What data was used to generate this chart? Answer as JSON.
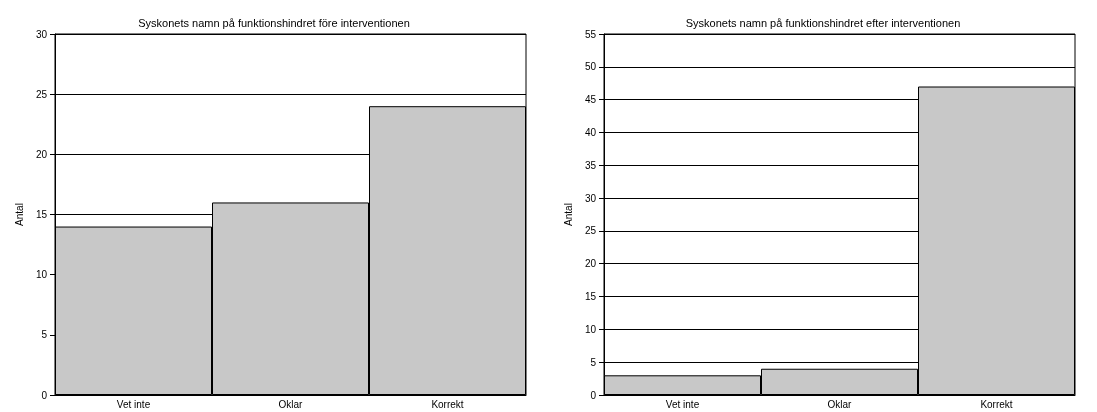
{
  "chart_data": [
    {
      "type": "bar",
      "title": "Syskonets namn på funktionshindret före interventionen",
      "ylabel": "Antal",
      "categories": [
        "Vet inte",
        "Oklar",
        "Korrekt"
      ],
      "values": [
        14,
        16,
        24
      ],
      "color": "#c8c8c8",
      "ylim": [
        0,
        30
      ],
      "yticks": [
        0,
        5,
        10,
        15,
        20,
        25,
        30
      ],
      "grid": "y"
    },
    {
      "type": "bar",
      "title": "Syskonets namn på funktionshindret efter interventionen",
      "ylabel": "Antal",
      "categories": [
        "Vet inte",
        "Oklar",
        "Korrekt"
      ],
      "values": [
        3,
        4,
        47
      ],
      "color": "#c8c8c8",
      "ylim": [
        0,
        55
      ],
      "yticks": [
        0,
        5,
        10,
        15,
        20,
        25,
        30,
        35,
        40,
        45,
        50,
        55
      ],
      "grid": "y"
    }
  ]
}
